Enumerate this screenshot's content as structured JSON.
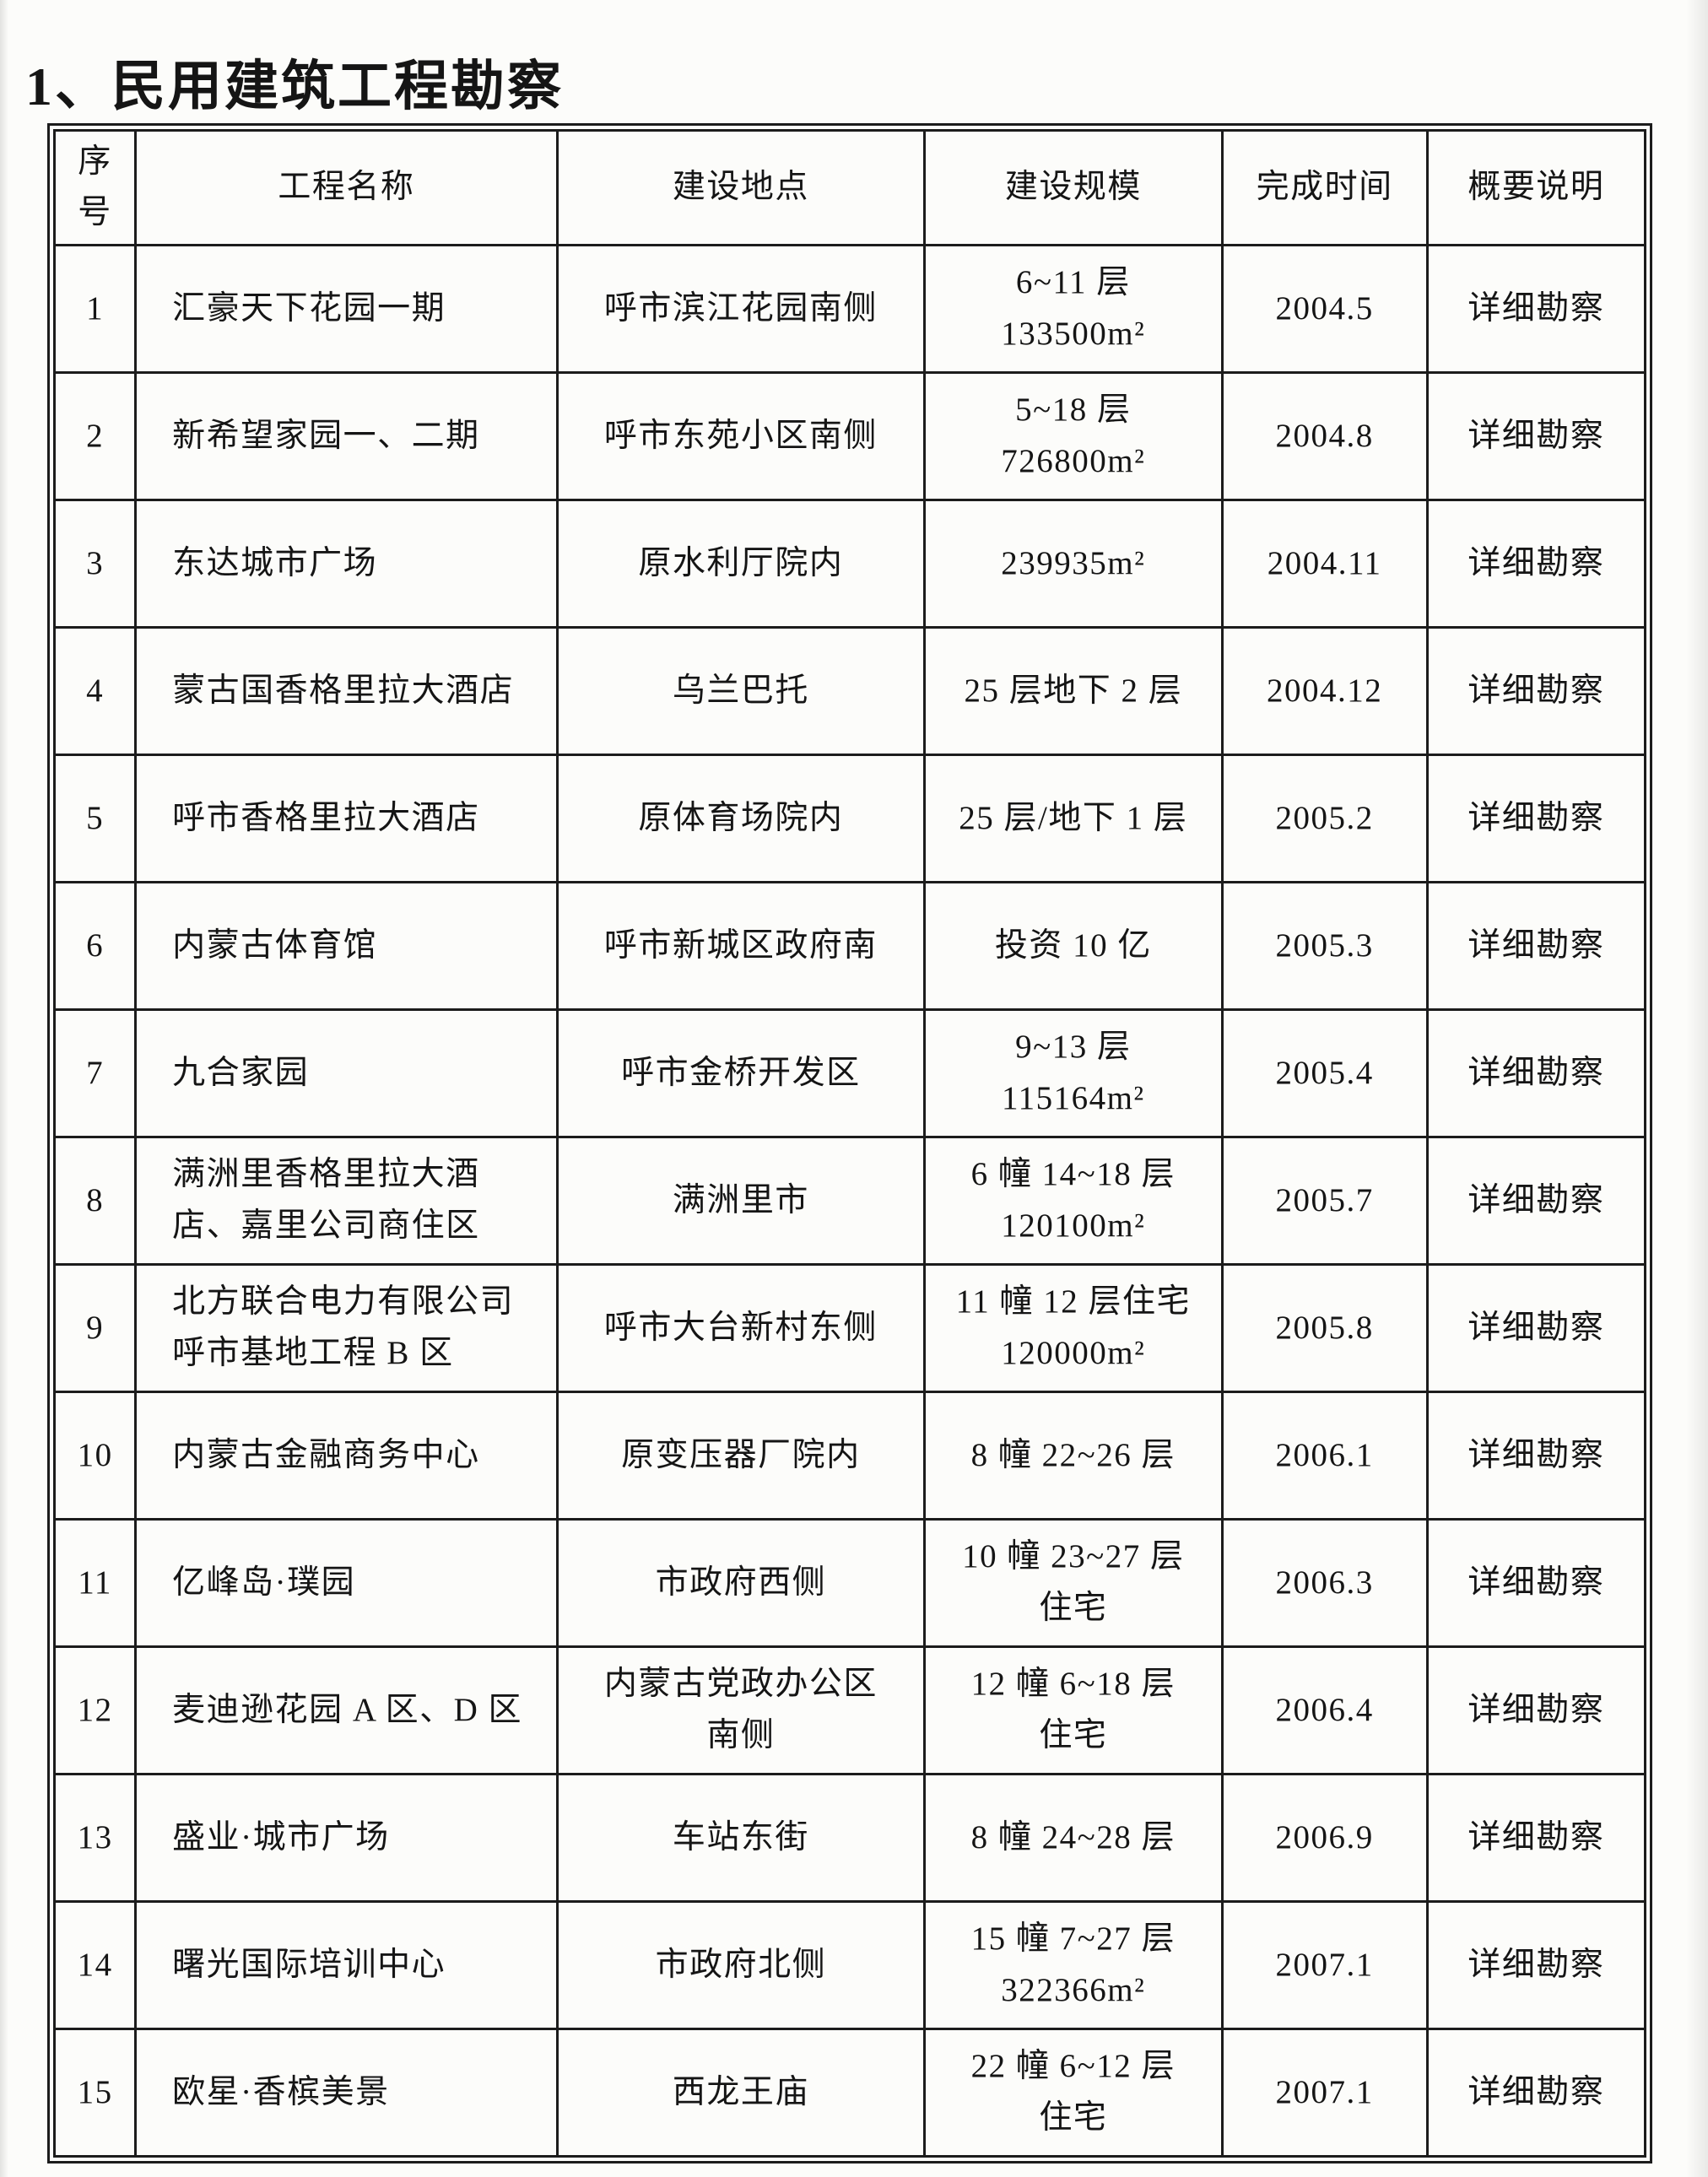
{
  "page": {
    "title": "1、民用建筑工程勘察"
  },
  "table": {
    "headers": [
      "序号",
      "工程名称",
      "建设地点",
      "建设规模",
      "完成时间",
      "概要说明"
    ],
    "rows": [
      {
        "no": "1",
        "name": "汇豪天下花园一期",
        "location": "呼市滨江花园南侧",
        "scale": "6~11 层\n133500m²",
        "time": "2004.5",
        "summary": "详细勘察"
      },
      {
        "no": "2",
        "name": "新希望家园一、二期",
        "location": "呼市东苑小区南侧",
        "scale": "5~18 层\n726800m²",
        "time": "2004.8",
        "summary": "详细勘察"
      },
      {
        "no": "3",
        "name": "东达城市广场",
        "location": "原水利厅院内",
        "scale": "239935m²",
        "time": "2004.11",
        "summary": "详细勘察"
      },
      {
        "no": "4",
        "name": "蒙古国香格里拉大酒店",
        "location": "乌兰巴托",
        "scale": "25 层地下 2 层",
        "time": "2004.12",
        "summary": "详细勘察"
      },
      {
        "no": "5",
        "name": "呼市香格里拉大酒店",
        "location": "原体育场院内",
        "scale": "25 层/地下 1 层",
        "time": "2005.2",
        "summary": "详细勘察"
      },
      {
        "no": "6",
        "name": "内蒙古体育馆",
        "location": "呼市新城区政府南",
        "scale": "投资 10 亿",
        "time": "2005.3",
        "summary": "详细勘察"
      },
      {
        "no": "7",
        "name": "九合家园",
        "location": "呼市金桥开发区",
        "scale": "9~13 层\n115164m²",
        "time": "2005.4",
        "summary": "详细勘察"
      },
      {
        "no": "8",
        "name": "满洲里香格里拉大酒\n店、嘉里公司商住区",
        "location": "满洲里市",
        "scale": "6 幢 14~18 层\n120100m²",
        "time": "2005.7",
        "summary": "详细勘察"
      },
      {
        "no": "9",
        "name": "北方联合电力有限公司\n呼市基地工程 B 区",
        "location": "呼市大台新村东侧",
        "scale": "11 幢 12 层住宅\n120000m²",
        "time": "2005.8",
        "summary": "详细勘察"
      },
      {
        "no": "10",
        "name": "内蒙古金融商务中心",
        "location": "原变压器厂院内",
        "scale": "8 幢 22~26 层",
        "time": "2006.1",
        "summary": "详细勘察"
      },
      {
        "no": "11",
        "name": "亿峰岛·璞园",
        "location": "市政府西侧",
        "scale": "10 幢 23~27 层\n住宅",
        "time": "2006.3",
        "summary": "详细勘察"
      },
      {
        "no": "12",
        "name": "麦迪逊花园 A 区、D 区",
        "location": "内蒙古党政办公区\n南侧",
        "scale": "12 幢 6~18 层\n住宅",
        "time": "2006.4",
        "summary": "详细勘察"
      },
      {
        "no": "13",
        "name": "盛业·城市广场",
        "location": "车站东街",
        "scale": "8 幢 24~28 层",
        "time": "2006.9",
        "summary": "详细勘察"
      },
      {
        "no": "14",
        "name": "曙光国际培训中心",
        "location": "市政府北侧",
        "scale": "15 幢 7~27 层\n322366m²",
        "time": "2007.1",
        "summary": "详细勘察"
      },
      {
        "no": "15",
        "name": "欧星·香槟美景",
        "location": "西龙王庙",
        "scale": "22 幢 6~12 层\n住宅",
        "time": "2007.1",
        "summary": "详细勘察"
      }
    ]
  }
}
